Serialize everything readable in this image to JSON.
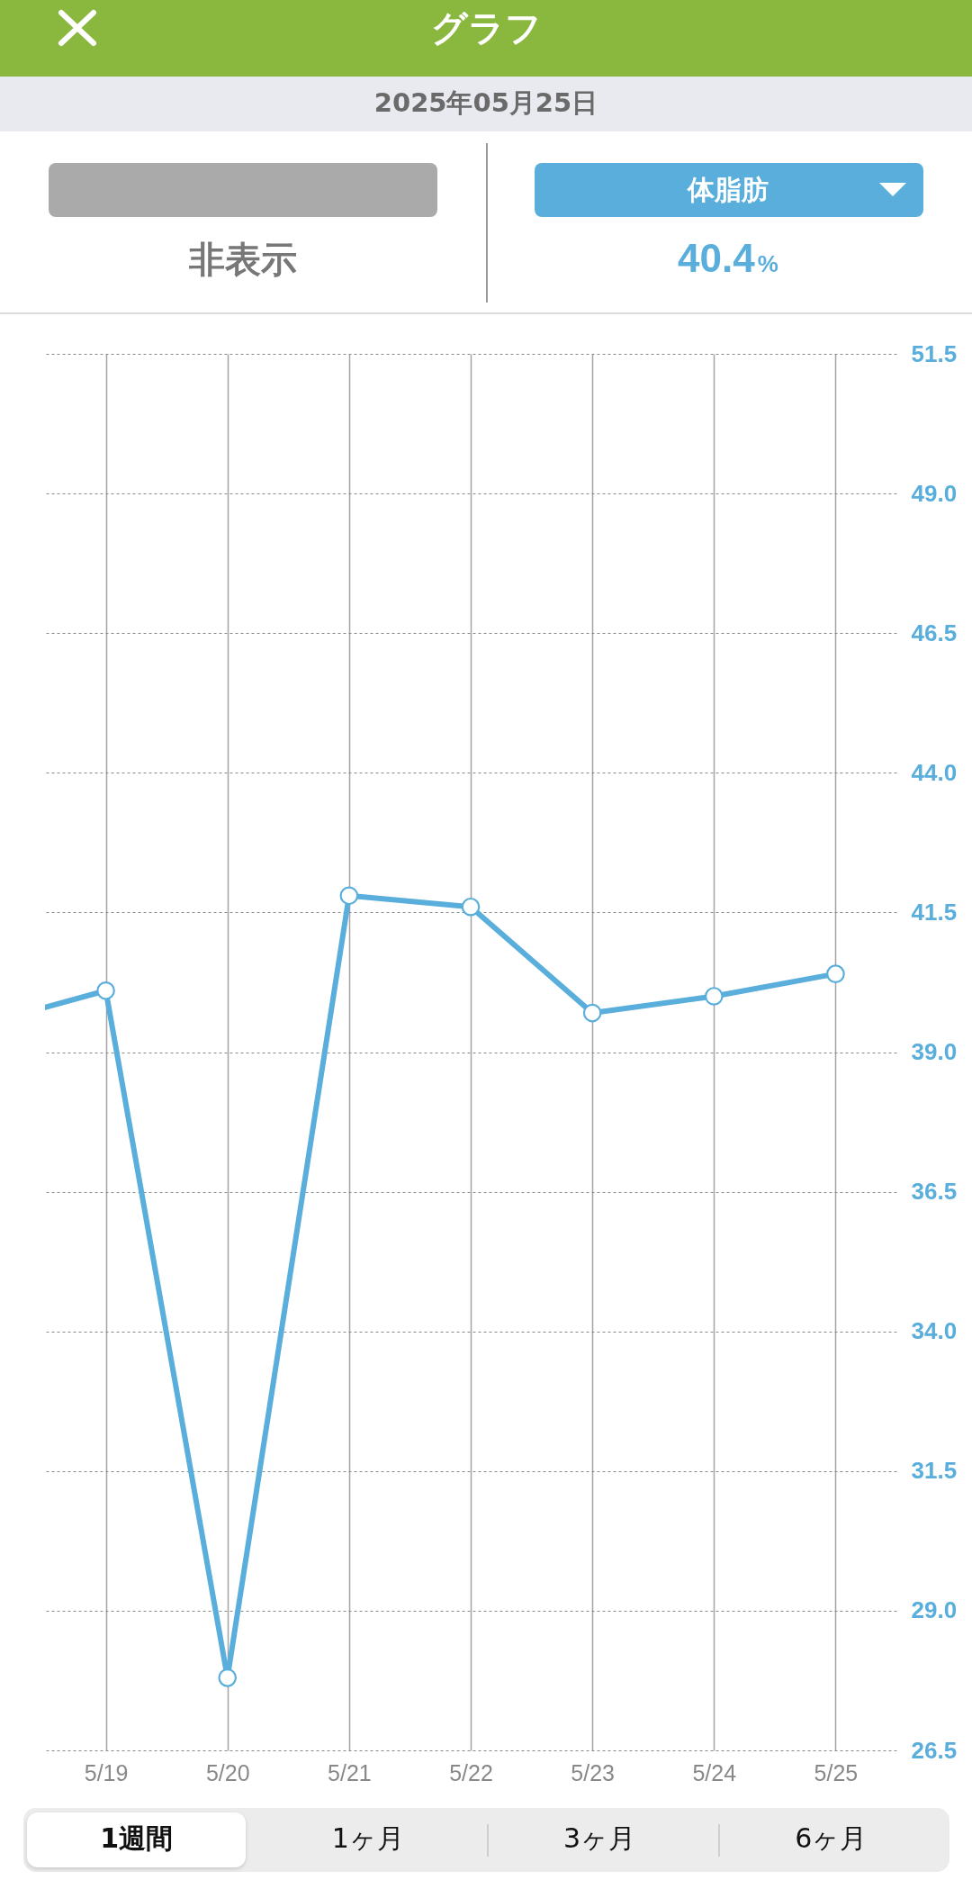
{
  "chart_data": {
    "type": "line",
    "title": "グラフ",
    "subtitle": "2025年05月25日",
    "annotations": [
      "非表示",
      "体脂肪",
      "40.4%",
      "1週間",
      "1ヶ月",
      "3ヶ月",
      "6ヶ月"
    ],
    "x": [
      "--05-19",
      "--05-20",
      "--05-21",
      "--05-22",
      "--05-23",
      "--05-24",
      "--05-25"
    ],
    "series": [
      {
        "color": "#5aaedb",
        "values": [
          40.1,
          27.8,
          41.8,
          41.6,
          39.7,
          40.0,
          40.4
        ]
      },
      {
        "x": [
          "--05-18T12:00",
          "--05-19"
        ],
        "color": "#5aaedb",
        "values": [
          39.8,
          40.1
        ],
        "marker": "none"
      }
    ],
    "xlim": [
      "--05-18T12:00",
      "--05-25T12:00"
    ],
    "xticks": [
      {
        "value": "--05-19",
        "label": "5/19"
      },
      {
        "value": "--05-20",
        "label": "5/20"
      },
      {
        "value": "--05-21",
        "label": "5/21"
      },
      {
        "value": "--05-22",
        "label": "5/22"
      },
      {
        "value": "--05-23",
        "label": "5/23"
      },
      {
        "value": "--05-24",
        "label": "5/24"
      },
      {
        "value": "--05-25",
        "label": "5/25"
      }
    ],
    "ylim": [
      26.5,
      51.5
    ],
    "yticks": [
      26.5,
      {
        "value": 29,
        "label": "29.0"
      },
      31.5,
      {
        "value": 34,
        "label": "34.0"
      },
      36.5,
      {
        "value": 39,
        "label": "39.0"
      },
      41.5,
      {
        "value": 44,
        "label": "44.0"
      },
      46.5,
      {
        "value": 49,
        "label": "49.0"
      },
      51.5
    ],
    "grid": true,
    "marker": "circle",
    "line_style": "solid"
  }
}
